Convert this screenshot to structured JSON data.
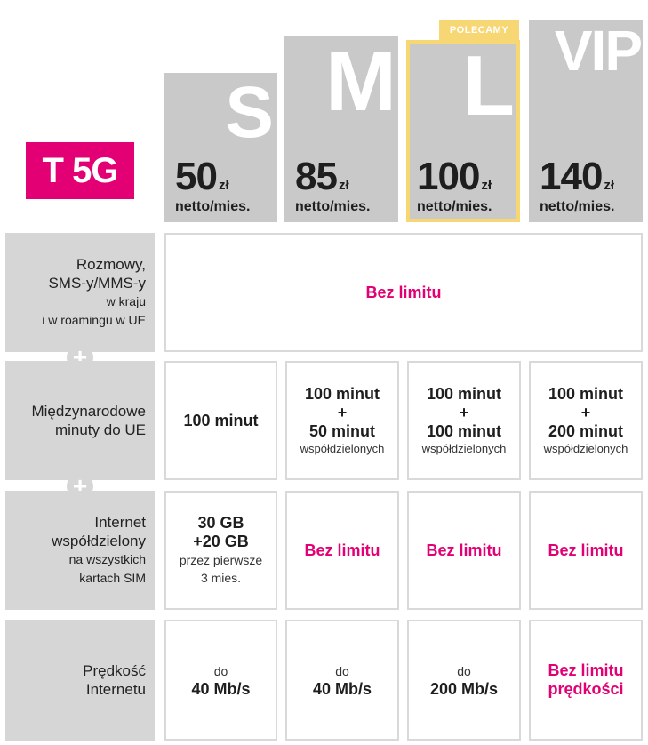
{
  "brand": {
    "logo_text": "T 5G",
    "accent": "#e20074",
    "badge_color": "#f7d774"
  },
  "plans": [
    {
      "letter": "S",
      "price": "50",
      "currency": "zł",
      "period": "netto/mies."
    },
    {
      "letter": "M",
      "price": "85",
      "currency": "zł",
      "period": "netto/mies."
    },
    {
      "letter": "L",
      "price": "100",
      "currency": "zł",
      "period": "netto/mies.",
      "badge": "POLECAMY"
    },
    {
      "letter": "VIP",
      "price": "140",
      "currency": "zł",
      "period": "netto/mies."
    }
  ],
  "rows": [
    {
      "label": [
        "Rozmowy,",
        "SMS-y/MMS-y",
        "w kraju",
        "i w roamingu w UE"
      ],
      "merged_value": "Bez limitu"
    },
    {
      "label": [
        "Międzynarodowe",
        "minuty do UE"
      ],
      "cells": [
        {
          "lines": [
            "100 minut"
          ]
        },
        {
          "lines": [
            "100 minut",
            "+",
            "50 minut"
          ],
          "note": "współdzielonych"
        },
        {
          "lines": [
            "100 minut",
            "+",
            "100 minut"
          ],
          "note": "współdzielonych"
        },
        {
          "lines": [
            "100 minut",
            "+",
            "200 minut"
          ],
          "note": "współdzielonych"
        }
      ]
    },
    {
      "label": [
        "Internet",
        "współdzielony",
        "na wszystkich",
        "kartach SIM"
      ],
      "cells": [
        {
          "lines": [
            "30 GB",
            "+20 GB"
          ],
          "note_lines": [
            "przez pierwsze",
            "3 mies."
          ]
        },
        {
          "lines": [
            "Bez limitu"
          ]
        },
        {
          "lines": [
            "Bez limitu"
          ]
        },
        {
          "lines": [
            "Bez limitu"
          ]
        }
      ]
    },
    {
      "label": [
        "Prędkość",
        "Internetu"
      ],
      "cells": [
        {
          "pre": "do",
          "lines": [
            "40 Mb/s"
          ]
        },
        {
          "pre": "do",
          "lines": [
            "40 Mb/s"
          ]
        },
        {
          "pre": "do",
          "lines": [
            "200 Mb/s"
          ]
        },
        {
          "lines": [
            "Bez limitu",
            "prędkości"
          ]
        }
      ]
    }
  ]
}
